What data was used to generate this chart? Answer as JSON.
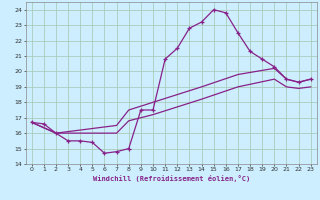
{
  "xlabel": "Windchill (Refroidissement éolien,°C)",
  "background_color": "#cceeff",
  "grid_color": "#aaddcc",
  "line_color": "#882288",
  "xlim": [
    -0.5,
    23.5
  ],
  "ylim": [
    14,
    24.5
  ],
  "yticks": [
    14,
    15,
    16,
    17,
    18,
    19,
    20,
    21,
    22,
    23,
    24
  ],
  "xticks": [
    0,
    1,
    2,
    3,
    4,
    5,
    6,
    7,
    8,
    9,
    10,
    11,
    12,
    13,
    14,
    15,
    16,
    17,
    18,
    19,
    20,
    21,
    22,
    23
  ],
  "line1_x": [
    0,
    1,
    2,
    3,
    4,
    5,
    6,
    7,
    8,
    9,
    10,
    11,
    12,
    13,
    14,
    15,
    16,
    17,
    18,
    19,
    20,
    21,
    22,
    23
  ],
  "line1_y": [
    16.7,
    16.6,
    16.0,
    15.5,
    15.5,
    15.4,
    14.7,
    14.8,
    15.0,
    17.5,
    17.5,
    20.8,
    21.5,
    22.8,
    23.2,
    24.0,
    23.8,
    22.5,
    21.3,
    20.8,
    20.3,
    19.5,
    19.3,
    19.5
  ],
  "line2_x": [
    0,
    2,
    7,
    8,
    10,
    14,
    17,
    20,
    21,
    22,
    23
  ],
  "line2_y": [
    16.7,
    16.0,
    16.5,
    17.5,
    18.0,
    19.0,
    19.8,
    20.2,
    19.5,
    19.3,
    19.5
  ],
  "line3_x": [
    0,
    2,
    7,
    8,
    10,
    14,
    17,
    20,
    21,
    22,
    23
  ],
  "line3_y": [
    16.7,
    16.0,
    16.0,
    16.8,
    17.2,
    18.2,
    19.0,
    19.5,
    19.0,
    18.9,
    19.0
  ]
}
